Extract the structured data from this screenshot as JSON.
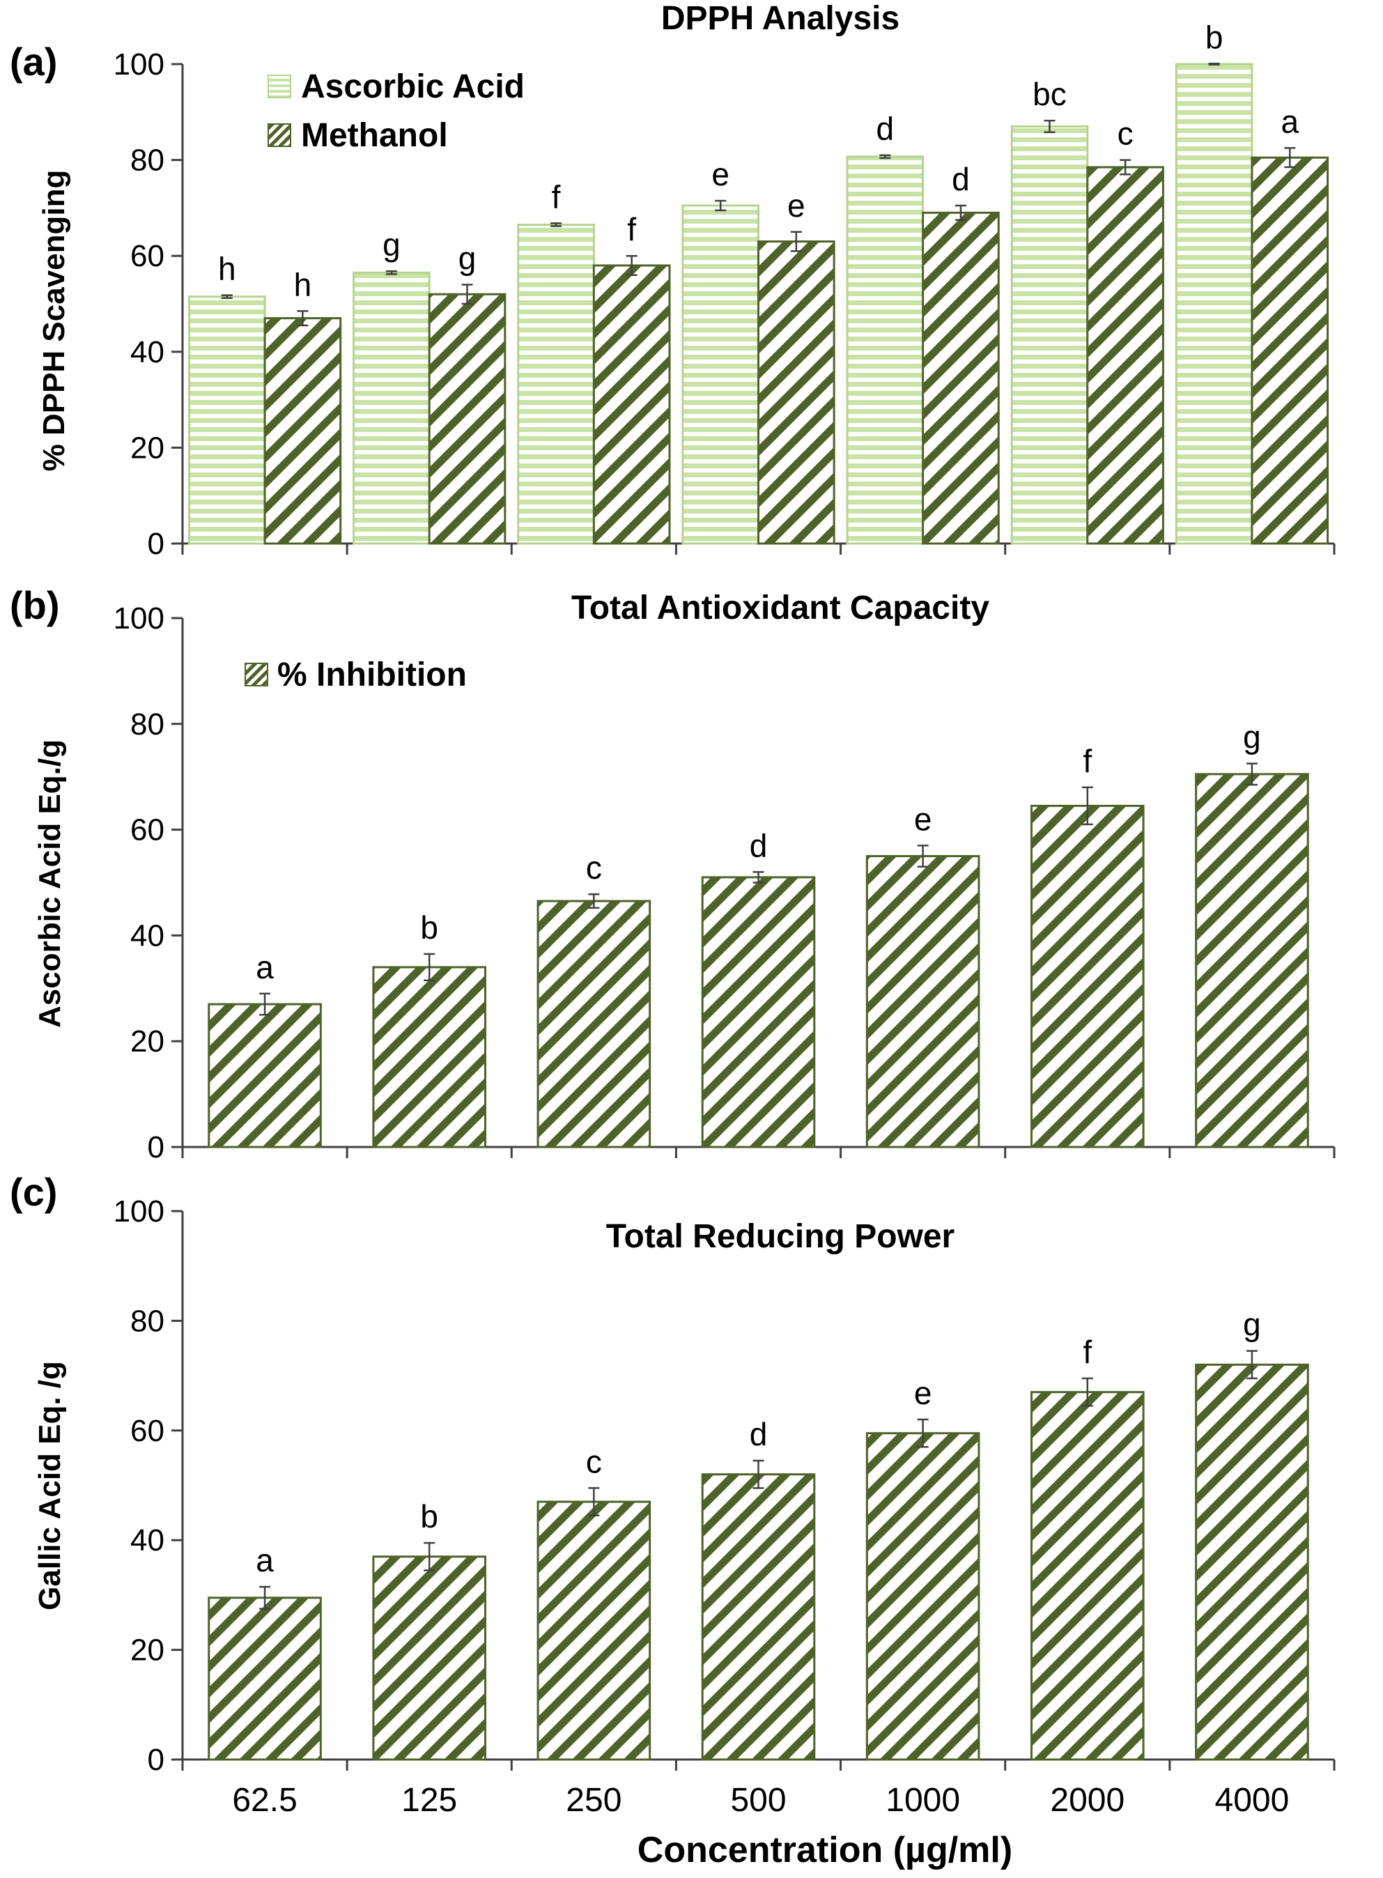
{
  "colors": {
    "ascorbic_fill": "#c9e3a7",
    "ascorbic_stroke": "#b5d38e",
    "ascorbic_hatch": "#8fbd5a",
    "methanol_stroke": "#4f6229",
    "methanol_hatch": "#4f6229",
    "axis": "#404040"
  },
  "xlabel": "Concentration (µg/ml)",
  "chart_data": [
    {
      "panel": "(a)",
      "type": "bar",
      "title": "DPPH Analysis",
      "ylabel": "% DPPH Scavenging",
      "ylim": [
        0,
        100
      ],
      "yticks": [
        "0",
        "20",
        "40",
        "60",
        "80",
        "100"
      ],
      "categories": [
        "62.5",
        "125",
        "250",
        "500",
        "1000",
        "2000",
        "4000"
      ],
      "legend_placement": "top-left",
      "series": [
        {
          "name": "Ascorbic Acid",
          "pattern": "horizontal-stripes",
          "values": [
            51.5,
            56.5,
            66.5,
            70.5,
            80.7,
            87,
            100
          ],
          "errors": [
            0.3,
            0.3,
            0.3,
            1.0,
            0.3,
            1.2,
            0.1
          ],
          "labels": [
            "h",
            "g",
            "f",
            "e",
            "d",
            "bc",
            "b"
          ]
        },
        {
          "name": "Methanol",
          "pattern": "diagonal-stripes",
          "values": [
            47,
            52,
            58,
            63,
            69,
            78.5,
            80.5
          ],
          "errors": [
            1.5,
            2.0,
            2.0,
            2.0,
            1.5,
            1.5,
            2.0
          ],
          "labels": [
            "h",
            "g",
            "f",
            "e",
            "d",
            "c",
            "a"
          ]
        }
      ]
    },
    {
      "panel": "(b)",
      "type": "bar",
      "title": "Total Antioxidant Capacity",
      "ylabel": "Ascorbic Acid Eq./g",
      "ylim": [
        0,
        100
      ],
      "yticks": [
        "0",
        "20",
        "40",
        "60",
        "80",
        "100"
      ],
      "categories": [
        "62.5",
        "125",
        "250",
        "500",
        "1000",
        "2000",
        "4000"
      ],
      "legend_placement": "top-left",
      "series": [
        {
          "name": "% Inhibition",
          "pattern": "diagonal-stripes",
          "values": [
            27,
            34,
            46.5,
            51,
            55,
            64.5,
            70.5
          ],
          "errors": [
            2.0,
            2.5,
            1.3,
            1.0,
            2.0,
            3.5,
            2.0
          ],
          "labels": [
            "a",
            "b",
            "c",
            "d",
            "e",
            "f",
            "g"
          ]
        }
      ]
    },
    {
      "panel": "(c)",
      "type": "bar",
      "title": "Total Reducing Power",
      "ylabel": "Gallic Acid Eq. /g",
      "ylim": [
        0,
        100
      ],
      "yticks": [
        "0",
        "20",
        "40",
        "60",
        "80",
        "100"
      ],
      "categories": [
        "62.5",
        "125",
        "250",
        "500",
        "1000",
        "2000",
        "4000"
      ],
      "series": [
        {
          "name": "",
          "pattern": "diagonal-stripes",
          "values": [
            29.5,
            37,
            47,
            52,
            59.5,
            67,
            72
          ],
          "errors": [
            2.0,
            2.5,
            2.5,
            2.5,
            2.5,
            2.5,
            2.5
          ],
          "labels": [
            "a",
            "b",
            "c",
            "d",
            "e",
            "f",
            "g"
          ]
        }
      ]
    }
  ]
}
